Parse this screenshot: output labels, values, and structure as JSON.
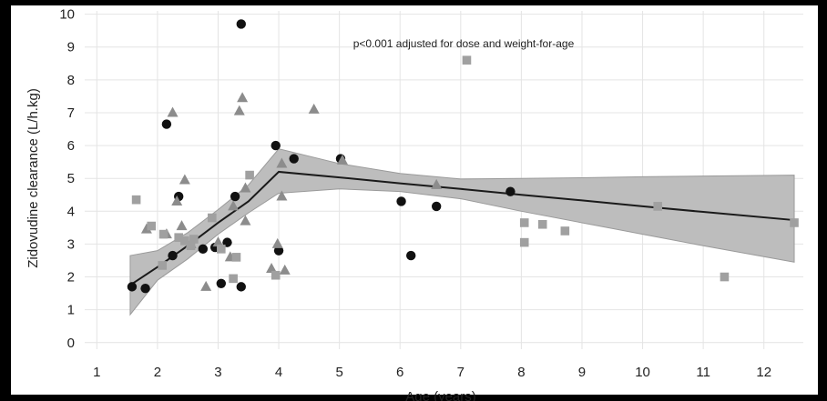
{
  "chart_data": {
    "type": "scatter",
    "title": "",
    "xlabel": "Age (years)",
    "ylabel": "Zidovudine clearance (L/h.kg)",
    "annotation": "p<0.001 adjusted for dose and weight-for-age",
    "xlim": [
      0.8,
      12.65
    ],
    "ylim": [
      -0.2,
      10.1
    ],
    "x_ticks": [
      "1",
      "2",
      "3",
      "4",
      "5",
      "6",
      "7",
      "8",
      "9",
      "10",
      "11",
      "12"
    ],
    "y_ticks": [
      "0",
      "1",
      "2",
      "3",
      "4",
      "5",
      "6",
      "7",
      "8",
      "9",
      "10"
    ],
    "grid": true,
    "colors": {
      "circle": "#111111",
      "triangle": "#8c8c8c",
      "square": "#a0a0a0",
      "band": "#bdbdbd",
      "trend": "#1a1a1a"
    },
    "series": [
      {
        "marker": "circle",
        "points": [
          {
            "x": 1.58,
            "y": 1.7
          },
          {
            "x": 1.8,
            "y": 1.65
          },
          {
            "x": 2.15,
            "y": 6.65
          },
          {
            "x": 2.25,
            "y": 2.65
          },
          {
            "x": 2.35,
            "y": 4.45
          },
          {
            "x": 2.75,
            "y": 2.85
          },
          {
            "x": 2.95,
            "y": 2.9
          },
          {
            "x": 3.05,
            "y": 1.8
          },
          {
            "x": 3.15,
            "y": 3.05
          },
          {
            "x": 3.28,
            "y": 4.45
          },
          {
            "x": 3.38,
            "y": 9.7
          },
          {
            "x": 3.38,
            "y": 1.7
          },
          {
            "x": 3.95,
            "y": 6.0
          },
          {
            "x": 4.0,
            "y": 2.8
          },
          {
            "x": 4.25,
            "y": 5.6
          },
          {
            "x": 5.02,
            "y": 5.6
          },
          {
            "x": 6.02,
            "y": 4.3
          },
          {
            "x": 6.18,
            "y": 2.65
          },
          {
            "x": 6.6,
            "y": 4.15
          },
          {
            "x": 7.82,
            "y": 4.6
          }
        ]
      },
      {
        "marker": "triangle",
        "points": [
          {
            "x": 1.82,
            "y": 3.45
          },
          {
            "x": 2.25,
            "y": 7.0
          },
          {
            "x": 2.32,
            "y": 4.3
          },
          {
            "x": 2.45,
            "y": 4.95
          },
          {
            "x": 2.4,
            "y": 3.55
          },
          {
            "x": 2.15,
            "y": 3.3
          },
          {
            "x": 2.55,
            "y": 3.0
          },
          {
            "x": 2.8,
            "y": 1.7
          },
          {
            "x": 3.0,
            "y": 3.05
          },
          {
            "x": 3.2,
            "y": 2.6
          },
          {
            "x": 3.25,
            "y": 4.15
          },
          {
            "x": 3.35,
            "y": 7.05
          },
          {
            "x": 3.4,
            "y": 7.45
          },
          {
            "x": 3.45,
            "y": 4.7
          },
          {
            "x": 3.45,
            "y": 3.7
          },
          {
            "x": 3.88,
            "y": 2.25
          },
          {
            "x": 3.98,
            "y": 3.0
          },
          {
            "x": 4.05,
            "y": 4.45
          },
          {
            "x": 4.05,
            "y": 5.45
          },
          {
            "x": 4.1,
            "y": 2.2
          },
          {
            "x": 4.58,
            "y": 7.1
          },
          {
            "x": 5.05,
            "y": 5.55
          },
          {
            "x": 6.6,
            "y": 4.8
          }
        ]
      },
      {
        "marker": "square",
        "points": [
          {
            "x": 1.65,
            "y": 4.35
          },
          {
            "x": 1.9,
            "y": 3.55
          },
          {
            "x": 2.08,
            "y": 2.35
          },
          {
            "x": 2.1,
            "y": 3.3
          },
          {
            "x": 2.35,
            "y": 3.2
          },
          {
            "x": 2.45,
            "y": 3.1
          },
          {
            "x": 2.55,
            "y": 2.95
          },
          {
            "x": 2.6,
            "y": 3.15
          },
          {
            "x": 2.9,
            "y": 3.8
          },
          {
            "x": 3.05,
            "y": 2.85
          },
          {
            "x": 3.25,
            "y": 1.95
          },
          {
            "x": 3.3,
            "y": 2.6
          },
          {
            "x": 3.52,
            "y": 5.1
          },
          {
            "x": 3.95,
            "y": 2.05
          },
          {
            "x": 7.1,
            "y": 8.6
          },
          {
            "x": 8.05,
            "y": 3.65
          },
          {
            "x": 8.05,
            "y": 3.05
          },
          {
            "x": 8.35,
            "y": 3.6
          },
          {
            "x": 8.72,
            "y": 3.4
          },
          {
            "x": 10.25,
            "y": 4.15
          },
          {
            "x": 11.35,
            "y": 2.0
          },
          {
            "x": 12.5,
            "y": 3.65
          }
        ]
      }
    ],
    "trend_line": {
      "x": [
        1.55,
        2.0,
        2.5,
        3.0,
        3.5,
        4.0,
        5.0,
        6.0,
        7.0,
        8.0,
        9.0,
        10.0,
        11.0,
        12.5
      ],
      "y": [
        1.75,
        2.3,
        2.95,
        3.65,
        4.3,
        5.2,
        5.03,
        4.85,
        4.68,
        4.5,
        4.33,
        4.15,
        3.98,
        3.73
      ]
    },
    "confidence_band": {
      "x": [
        1.55,
        2.0,
        2.5,
        3.0,
        3.5,
        4.0,
        5.0,
        6.0,
        7.0,
        8.0,
        9.0,
        10.0,
        11.0,
        12.5
      ],
      "lower": [
        0.85,
        1.9,
        2.55,
        3.3,
        3.95,
        4.55,
        4.68,
        4.6,
        4.38,
        4.0,
        3.65,
        3.3,
        2.95,
        2.45
      ],
      "upper": [
        2.65,
        2.8,
        3.35,
        4.05,
        4.8,
        5.9,
        5.45,
        5.15,
        4.98,
        5.0,
        5.02,
        5.05,
        5.07,
        5.1
      ]
    }
  }
}
